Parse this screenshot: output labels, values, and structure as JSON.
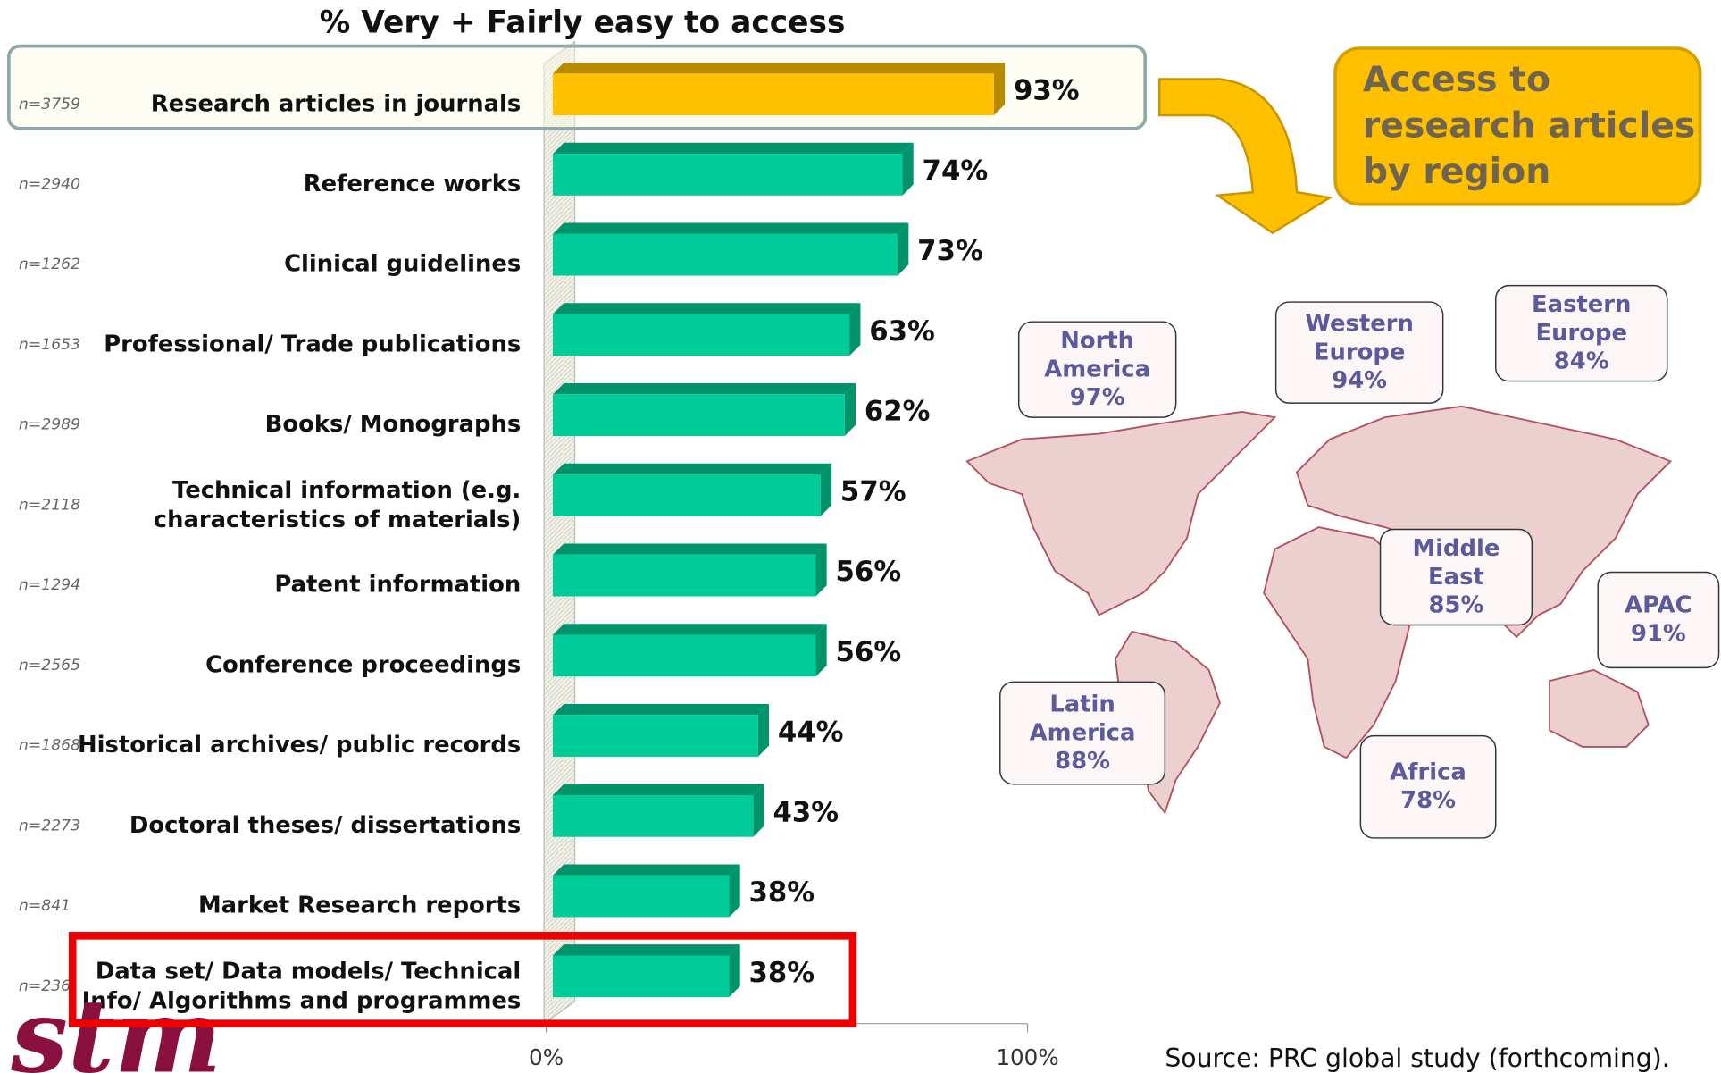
{
  "chart_data": {
    "type": "bar",
    "title": "% Very + Fairly easy to access",
    "categories": [
      "Research articles in journals",
      "Reference works",
      "Clinical guidelines",
      "Professional/ Trade publications",
      "Books/ Monographs",
      "Technical information (e.g.\ncharacteristics of materials)",
      "Patent information",
      "Conference proceedings",
      "Historical archives/ public records",
      "Doctoral theses/ dissertations",
      "Market Research reports",
      "Data set/  Data models/ Technical\nInfo/ Algorithms and programmes"
    ],
    "sample_sizes": [
      "n=3759",
      "n=2940",
      "n=1262",
      "n=1653",
      "n=2989",
      "n=2118",
      "n=1294",
      "n=2565",
      "n=1868",
      "n=2273",
      "n=841",
      "n=236"
    ],
    "values": [
      93,
      74,
      73,
      63,
      62,
      57,
      56,
      56,
      44,
      43,
      38,
      38
    ],
    "value_labels": [
      "93%",
      "74%",
      "73%",
      "63%",
      "62%",
      "57%",
      "56%",
      "56%",
      "44%",
      "43%",
      "38%",
      "38%"
    ],
    "colors": [
      "#ffc000",
      "#00cc99",
      "#00cc99",
      "#00cc99",
      "#00cc99",
      "#00cc99",
      "#00cc99",
      "#00cc99",
      "#00cc99",
      "#00cc99",
      "#00cc99",
      "#00cc99"
    ],
    "xlim": [
      0,
      100
    ],
    "xticks": [
      {
        "value": 0,
        "label": "0%"
      },
      {
        "value": 100,
        "label": "100%"
      }
    ]
  },
  "callout": {
    "title": "Access to\nresearch articles\nby region"
  },
  "regions": [
    {
      "name": "North\nAmerica",
      "label": "97%"
    },
    {
      "name": "Western\nEurope",
      "label": "94%"
    },
    {
      "name": "Eastern\nEurope",
      "label": "84%"
    },
    {
      "name": "Middle\nEast",
      "label": "85%"
    },
    {
      "name": "APAC",
      "label": "91%"
    },
    {
      "name": "Latin\nAmerica",
      "label": "88%"
    },
    {
      "name": "Africa",
      "label": "78%"
    }
  ],
  "source": "Source: PRC global study (forthcoming).",
  "logo": "stm"
}
